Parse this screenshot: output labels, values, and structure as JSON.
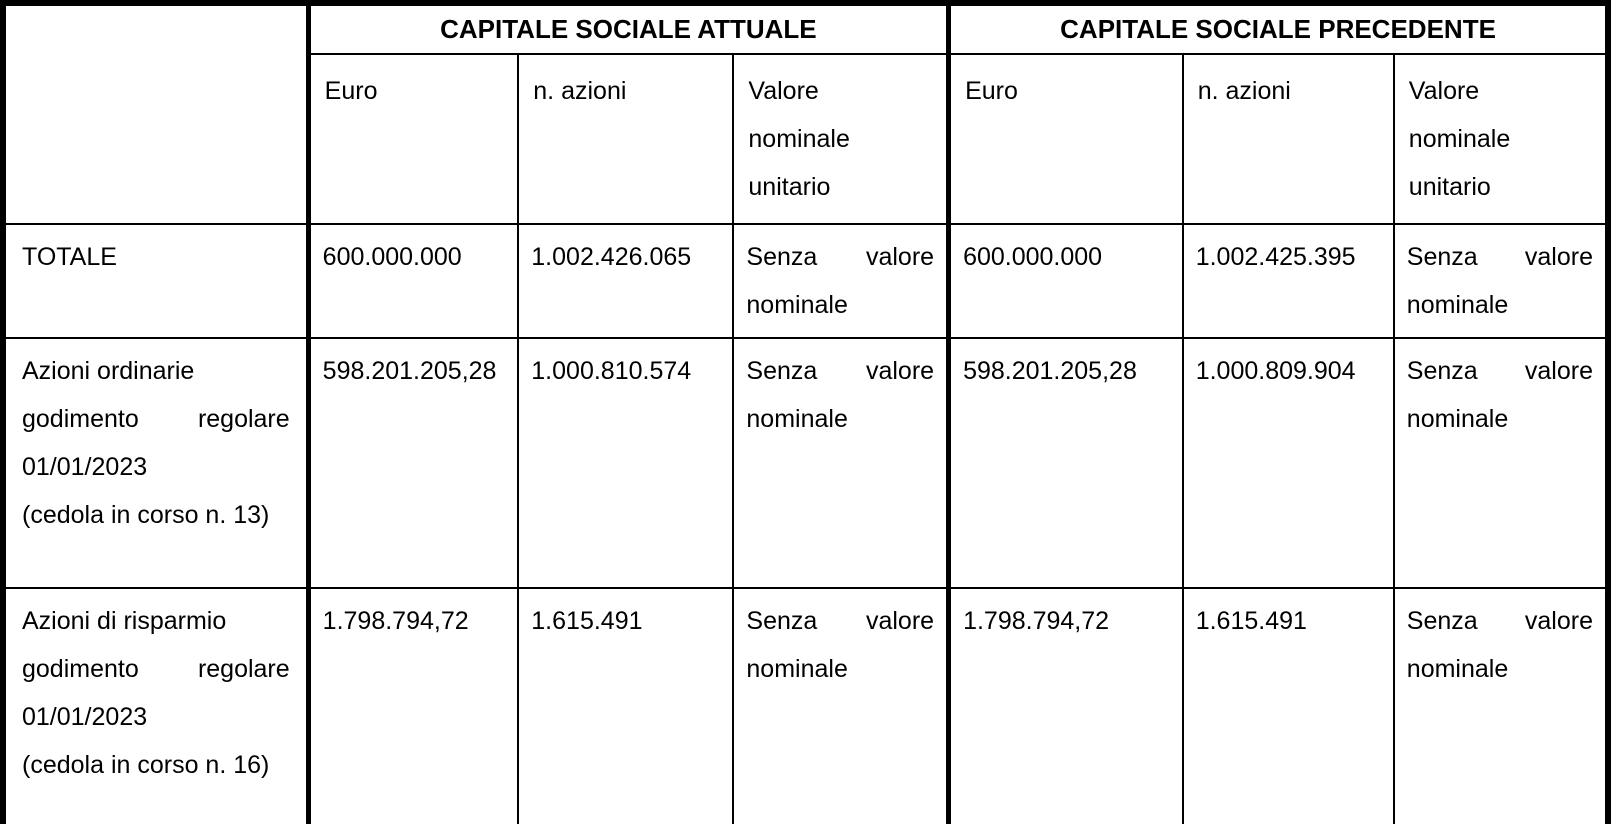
{
  "document": {
    "header": {
      "group_attuale": "CAPITALE SOCIALE ATTUALE",
      "group_precedente": "CAPITALE SOCIALE PRECEDENTE",
      "col_euro": "Euro",
      "col_azioni": "n. azioni",
      "col_valore_lines": [
        {
          "text": "Valore",
          "justify": false
        },
        {
          "text": "nominale",
          "justify": false
        },
        {
          "text": "unitario",
          "justify": false
        }
      ]
    },
    "rows": [
      {
        "name": "totale",
        "label_lines": [
          {
            "text": "TOTALE",
            "justify": false
          }
        ],
        "attuale": {
          "euro": "600.000.000",
          "azioni": "1.002.426.065",
          "valore_lines": [
            {
              "text": "Senza valore",
              "justify": true
            },
            {
              "text": "nominale",
              "justify": false
            }
          ]
        },
        "precedente": {
          "euro": "600.000.000",
          "azioni": "1.002.425.395",
          "valore_lines": [
            {
              "text": "Senza valore",
              "justify": true
            },
            {
              "text": "nominale",
              "justify": false
            }
          ]
        }
      },
      {
        "name": "azioni-ordinarie",
        "label_lines": [
          {
            "text": "Azioni ordinarie",
            "justify": false
          },
          {
            "text": "godimento regolare",
            "justify": true
          },
          {
            "text": "01/01/2023",
            "justify": false
          },
          {
            "text": "(cedola in corso n. 13)",
            "justify": false
          }
        ],
        "attuale": {
          "euro": "598.201.205,28",
          "azioni": "1.000.810.574",
          "valore_lines": [
            {
              "text": "Senza valore",
              "justify": true
            },
            {
              "text": "nominale",
              "justify": false
            }
          ]
        },
        "precedente": {
          "euro": "598.201.205,28",
          "azioni": "1.000.809.904",
          "valore_lines": [
            {
              "text": "Senza valore",
              "justify": true
            },
            {
              "text": "nominale",
              "justify": false
            }
          ]
        }
      },
      {
        "name": "azioni-risparmio",
        "label_lines": [
          {
            "text": "Azioni di risparmio",
            "justify": false
          },
          {
            "text": "godimento regolare",
            "justify": true
          },
          {
            "text": "01/01/2023",
            "justify": false
          },
          {
            "text": "(cedola in corso n. 16)",
            "justify": false
          }
        ],
        "attuale": {
          "euro": "1.798.794,72",
          "azioni": "1.615.491",
          "valore_lines": [
            {
              "text": "Senza valore",
              "justify": true
            },
            {
              "text": "nominale",
              "justify": false
            }
          ]
        },
        "precedente": {
          "euro": "1.798.794,72",
          "azioni": "1.615.491",
          "valore_lines": [
            {
              "text": "Senza valore",
              "justify": true
            },
            {
              "text": "nominale",
              "justify": false
            }
          ]
        }
      }
    ]
  }
}
